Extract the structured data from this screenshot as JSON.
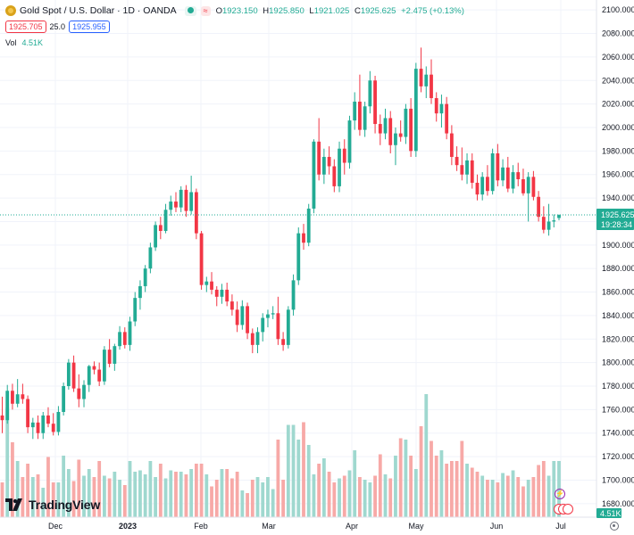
{
  "header": {
    "title": "Gold Spot / U.S. Dollar · 1D · OANDA",
    "live_tag": "≈",
    "ohlc": {
      "o_label": "O",
      "o_value": "1923.150",
      "h_label": "H",
      "h_value": "1925.850",
      "l_label": "L",
      "l_value": "1921.025",
      "c_label": "C",
      "c_value": "1925.625",
      "change": "+2.475 (+0.13%)"
    },
    "bid": "1925.705",
    "spread": "25.0",
    "ask": "1925.955",
    "volume_label": "Vol",
    "volume_value": "4.51K"
  },
  "price_tag": {
    "price": "1925.625",
    "countdown": "19:28:34"
  },
  "volume_tag": "4.51K",
  "logo_text": "TradingView",
  "colors": {
    "up": "#22ab94",
    "down": "#f23645",
    "up_vol": "#9fd8cf",
    "down_vol": "#f7a9a7",
    "grid": "#f0f3fa",
    "axis_text": "#131722"
  },
  "chart_data": {
    "type": "candlestick",
    "ylim": [
      1670,
      2110
    ],
    "y_ticks": [
      "1680.000",
      "1700.000",
      "1720.000",
      "1740.000",
      "1760.000",
      "1780.000",
      "1800.000",
      "1820.000",
      "1840.000",
      "1860.000",
      "1880.000",
      "1900.000",
      "1920.000",
      "1940.000",
      "1960.000",
      "1980.000",
      "2000.000",
      "2020.000",
      "2040.000",
      "2060.000",
      "2080.000",
      "2100.000"
    ],
    "x_ticks": [
      "Dec",
      "2023",
      "Feb",
      "Mar",
      "Apr",
      "May",
      "Jun",
      "Jul"
    ],
    "last_price": 1925.625,
    "candles": [
      [
        1755,
        1771,
        1740,
        1751
      ],
      [
        1751,
        1781,
        1748,
        1776
      ],
      [
        1776,
        1782,
        1760,
        1765
      ],
      [
        1765,
        1786,
        1762,
        1773
      ],
      [
        1773,
        1782,
        1765,
        1769
      ],
      [
        1769,
        1772,
        1740,
        1745
      ],
      [
        1745,
        1753,
        1735,
        1749
      ],
      [
        1749,
        1755,
        1735,
        1740
      ],
      [
        1740,
        1758,
        1735,
        1755
      ],
      [
        1755,
        1762,
        1745,
        1748
      ],
      [
        1748,
        1757,
        1738,
        1741
      ],
      [
        1741,
        1763,
        1738,
        1758
      ],
      [
        1758,
        1783,
        1755,
        1780
      ],
      [
        1780,
        1803,
        1777,
        1800
      ],
      [
        1800,
        1806,
        1775,
        1778
      ],
      [
        1778,
        1790,
        1762,
        1769
      ],
      [
        1769,
        1785,
        1762,
        1781
      ],
      [
        1781,
        1798,
        1775,
        1797
      ],
      [
        1797,
        1801,
        1790,
        1794
      ],
      [
        1794,
        1800,
        1780,
        1784
      ],
      [
        1784,
        1814,
        1781,
        1811
      ],
      [
        1811,
        1820,
        1796,
        1799
      ],
      [
        1799,
        1816,
        1793,
        1814
      ],
      [
        1814,
        1831,
        1811,
        1826
      ],
      [
        1826,
        1830,
        1812,
        1815
      ],
      [
        1815,
        1839,
        1810,
        1835
      ],
      [
        1835,
        1860,
        1831,
        1855
      ],
      [
        1855,
        1870,
        1845,
        1865
      ],
      [
        1865,
        1883,
        1860,
        1880
      ],
      [
        1880,
        1902,
        1876,
        1898
      ],
      [
        1898,
        1920,
        1895,
        1917
      ],
      [
        1917,
        1924,
        1905,
        1912
      ],
      [
        1912,
        1935,
        1910,
        1930
      ],
      [
        1930,
        1942,
        1925,
        1937
      ],
      [
        1937,
        1945,
        1928,
        1932
      ],
      [
        1932,
        1950,
        1928,
        1947
      ],
      [
        1947,
        1951,
        1924,
        1929
      ],
      [
        1929,
        1959,
        1926,
        1945
      ],
      [
        1945,
        1948,
        1905,
        1910
      ],
      [
        1910,
        1912,
        1862,
        1866
      ],
      [
        1866,
        1873,
        1860,
        1869
      ],
      [
        1869,
        1877,
        1858,
        1862
      ],
      [
        1862,
        1865,
        1848,
        1856
      ],
      [
        1856,
        1867,
        1850,
        1862
      ],
      [
        1862,
        1868,
        1848,
        1852
      ],
      [
        1852,
        1858,
        1840,
        1845
      ],
      [
        1845,
        1852,
        1826,
        1832
      ],
      [
        1832,
        1853,
        1828,
        1848
      ],
      [
        1848,
        1851,
        1820,
        1825
      ],
      [
        1825,
        1829,
        1808,
        1815
      ],
      [
        1815,
        1830,
        1808,
        1826
      ],
      [
        1826,
        1842,
        1818,
        1838
      ],
      [
        1838,
        1845,
        1830,
        1841
      ],
      [
        1841,
        1848,
        1837,
        1842
      ],
      [
        1842,
        1856,
        1815,
        1820
      ],
      [
        1820,
        1826,
        1810,
        1815
      ],
      [
        1815,
        1848,
        1812,
        1845
      ],
      [
        1845,
        1875,
        1840,
        1870
      ],
      [
        1870,
        1915,
        1866,
        1910
      ],
      [
        1910,
        1918,
        1896,
        1902
      ],
      [
        1902,
        1935,
        1899,
        1931
      ],
      [
        1931,
        1990,
        1927,
        1988
      ],
      [
        1988,
        2008,
        1955,
        1960
      ],
      [
        1960,
        1982,
        1952,
        1975
      ],
      [
        1975,
        1984,
        1960,
        1967
      ],
      [
        1967,
        1973,
        1945,
        1950
      ],
      [
        1950,
        1988,
        1945,
        1982
      ],
      [
        1982,
        1990,
        1960,
        1970
      ],
      [
        1970,
        2010,
        1965,
        2006
      ],
      [
        2006,
        2030,
        1998,
        2022
      ],
      [
        2022,
        2045,
        1993,
        1998
      ],
      [
        1998,
        2022,
        1992,
        2018
      ],
      [
        2018,
        2048,
        2012,
        2040
      ],
      [
        2040,
        2044,
        1995,
        2003
      ],
      [
        2003,
        2011,
        1985,
        1995
      ],
      [
        1995,
        2016,
        1990,
        2008
      ],
      [
        2008,
        2014,
        1978,
        1985
      ],
      [
        1985,
        2000,
        1968,
        1995
      ],
      [
        1995,
        2006,
        1988,
        1992
      ],
      [
        1992,
        2020,
        1986,
        2016
      ],
      [
        2016,
        2025,
        1975,
        1980
      ],
      [
        1980,
        2055,
        1975,
        2050
      ],
      [
        2050,
        2068,
        2030,
        2035
      ],
      [
        2035,
        2052,
        2025,
        2045
      ],
      [
        2045,
        2058,
        2020,
        2025
      ],
      [
        2025,
        2030,
        2005,
        2012
      ],
      [
        2012,
        2028,
        2000,
        2020
      ],
      [
        2020,
        2026,
        1990,
        1995
      ],
      [
        1995,
        2002,
        1968,
        1975
      ],
      [
        1975,
        1984,
        1963,
        1968
      ],
      [
        1968,
        1983,
        1955,
        1960
      ],
      [
        1960,
        1978,
        1952,
        1972
      ],
      [
        1972,
        1978,
        1948,
        1953
      ],
      [
        1953,
        1960,
        1938,
        1943
      ],
      [
        1943,
        1962,
        1938,
        1958
      ],
      [
        1958,
        1968,
        1942,
        1946
      ],
      [
        1946,
        1982,
        1943,
        1978
      ],
      [
        1978,
        1986,
        1950,
        1955
      ],
      [
        1955,
        1973,
        1950,
        1966
      ],
      [
        1966,
        1975,
        1945,
        1948
      ],
      [
        1948,
        1968,
        1944,
        1962
      ],
      [
        1962,
        1970,
        1950,
        1956
      ],
      [
        1956,
        1965,
        1942,
        1944
      ],
      [
        1944,
        1962,
        1920,
        1958
      ],
      [
        1958,
        1963,
        1938,
        1941
      ],
      [
        1941,
        1946,
        1920,
        1924
      ],
      [
        1924,
        1933,
        1910,
        1913
      ],
      [
        1913,
        1935,
        1908,
        1920
      ],
      [
        1920,
        1926,
        1915,
        1921
      ],
      [
        1923,
        1926,
        1921,
        1925.6
      ]
    ],
    "volume_max": 1000,
    "volumes": [
      260,
      820,
      560,
      420,
      300,
      400,
      300,
      320,
      220,
      450,
      260,
      260,
      460,
      360,
      270,
      430,
      310,
      360,
      300,
      420,
      310,
      290,
      340,
      280,
      240,
      420,
      340,
      350,
      320,
      420,
      300,
      400,
      290,
      350,
      340,
      340,
      320,
      360,
      400,
      400,
      320,
      230,
      280,
      360,
      360,
      290,
      340,
      200,
      180,
      280,
      300,
      260,
      300,
      210,
      580,
      280,
      690,
      690,
      580,
      710,
      540,
      320,
      400,
      440,
      340,
      260,
      290,
      310,
      350,
      500,
      300,
      280,
      260,
      310,
      470,
      320,
      290,
      460,
      590,
      580,
      460,
      360,
      680,
      920,
      570,
      460,
      500,
      400,
      420,
      420,
      570,
      400,
      370,
      340,
      310,
      280,
      280,
      260,
      330,
      310,
      350,
      300,
      230,
      280,
      300,
      390,
      420,
      310,
      420,
      420
    ]
  }
}
